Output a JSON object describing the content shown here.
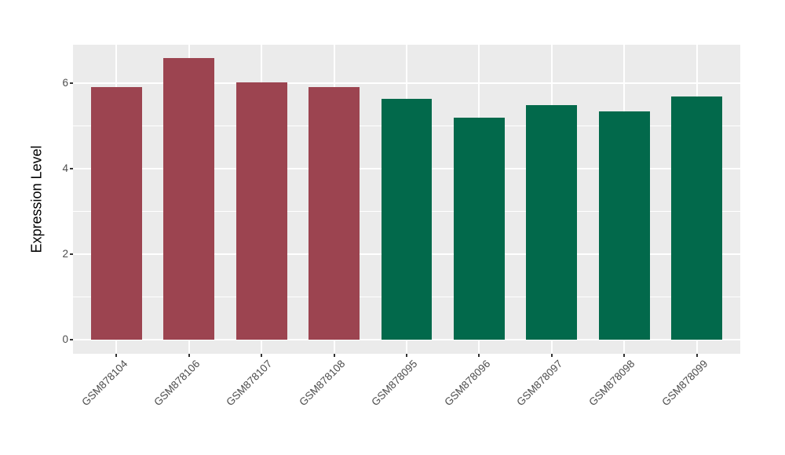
{
  "figure": {
    "background_color": "#FFFFFF",
    "panel_background_color": "#EBEBEB",
    "gridline_color": "#FFFFFF",
    "tick_mark_color": "#333333",
    "axis_text_color": "#4D4D4D",
    "axis_title_color": "#000000"
  },
  "chart_data": {
    "type": "bar",
    "title": "",
    "xlabel": "",
    "ylabel": "Expression Level",
    "categories": [
      "GSM878104",
      "GSM878106",
      "GSM878107",
      "GSM878108",
      "GSM878095",
      "GSM878096",
      "GSM878097",
      "GSM878098",
      "GSM878099"
    ],
    "values": [
      5.9,
      6.58,
      6.02,
      5.91,
      5.64,
      5.2,
      5.49,
      5.34,
      5.68
    ],
    "bar_colors": [
      "#9C4450",
      "#9C4450",
      "#9C4450",
      "#9C4450",
      "#02694B",
      "#02694B",
      "#02694B",
      "#02694B",
      "#02694B"
    ],
    "yticks": [
      0,
      2,
      4,
      6
    ],
    "yminor": [
      1,
      3,
      5
    ],
    "ylim": [
      0,
      6.9
    ],
    "x_tick_rotation_deg": -45,
    "legend_position": "none",
    "grid": "white major+minor horizontal, white major vertical on gray panel"
  }
}
